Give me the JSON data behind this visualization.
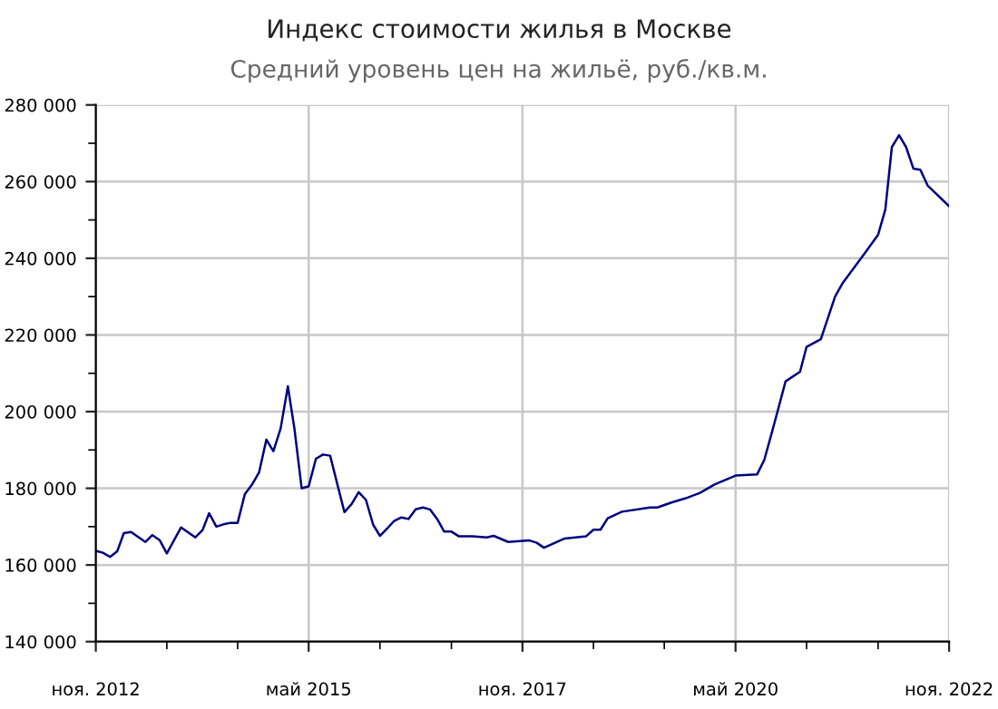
{
  "chart_data": {
    "type": "line",
    "title": "Индекс стоимости жилья в Москве",
    "subtitle": "Средний уровень цен на жильё, руб./кв.м.",
    "x": [
      "2012-11",
      "2012-12",
      "2013-01",
      "2013-02",
      "2013-03",
      "2013-04",
      "2013-06",
      "2013-07",
      "2013-08",
      "2013-09",
      "2013-11",
      "2014-01",
      "2014-02",
      "2014-03",
      "2014-04",
      "2014-05",
      "2014-06",
      "2014-07",
      "2014-08",
      "2014-09",
      "2014-10",
      "2014-11",
      "2014-12",
      "2015-01",
      "2015-02",
      "2015-03",
      "2015-04",
      "2015-05",
      "2015-06",
      "2015-07",
      "2015-08",
      "2015-09",
      "2015-10",
      "2015-11",
      "2015-12",
      "2016-01",
      "2016-02",
      "2016-03",
      "2016-04",
      "2016-05",
      "2016-06",
      "2016-07",
      "2016-08",
      "2016-09",
      "2016-10",
      "2016-11",
      "2016-12",
      "2017-01",
      "2017-02",
      "2017-04",
      "2017-06",
      "2017-07",
      "2017-09",
      "2017-12",
      "2018-01",
      "2018-02",
      "2018-05",
      "2018-08",
      "2018-09",
      "2018-10",
      "2018-11",
      "2019-01",
      "2019-05",
      "2019-06",
      "2019-08",
      "2019-10",
      "2019-12",
      "2020-02",
      "2020-05",
      "2020-08",
      "2020-09",
      "2020-10",
      "2020-11",
      "2020-12",
      "2021-02",
      "2021-03",
      "2021-05",
      "2021-07",
      "2021-08",
      "2021-11",
      "2022-01",
      "2022-02",
      "2022-03",
      "2022-04",
      "2022-05",
      "2022-06",
      "2022-07",
      "2022-08",
      "2022-11"
    ],
    "series": [
      {
        "color": "#000080",
        "values": [
          163700,
          163200,
          162100,
          163600,
          168300,
          168600,
          166000,
          167800,
          166500,
          163000,
          169800,
          167200,
          169100,
          173500,
          170000,
          170600,
          171000,
          171000,
          178500,
          181000,
          184200,
          192700,
          189700,
          195600,
          206600,
          195600,
          180000,
          180500,
          187700,
          188800,
          188500,
          181000,
          173800,
          175900,
          179000,
          177000,
          170500,
          167600,
          169500,
          171500,
          172400,
          172000,
          174500,
          175000,
          174500,
          172000,
          168700,
          168700,
          167500,
          167500,
          167200,
          167600,
          166000,
          166400,
          165800,
          164500,
          166900,
          167500,
          169200,
          169200,
          172200,
          173900,
          175000,
          175000,
          176300,
          177400,
          178800,
          181000,
          183300,
          183600,
          187400,
          194000,
          201000,
          207900,
          210400,
          216900,
          218900,
          230000,
          233400,
          241000,
          246100,
          252700,
          269000,
          272100,
          269000,
          263400,
          263100,
          259000,
          253600
        ]
      }
    ],
    "xlim": [
      "2012-11",
      "2022-11"
    ],
    "xticks": [
      {
        "value": "2012-11",
        "label": "ноя. 2012"
      },
      {
        "value": "2013-09",
        "label": null
      },
      {
        "value": "2014-07",
        "label": null
      },
      {
        "value": "2015-05",
        "label": "май 2015"
      },
      {
        "value": "2016-03",
        "label": null
      },
      {
        "value": "2017-01",
        "label": null
      },
      {
        "value": "2017-11",
        "label": "ноя. 2017"
      },
      {
        "value": "2018-09",
        "label": null
      },
      {
        "value": "2019-07",
        "label": null
      },
      {
        "value": "2020-05",
        "label": "май 2020"
      },
      {
        "value": "2021-03",
        "label": null
      },
      {
        "value": "2022-01",
        "label": null
      },
      {
        "value": "2022-11",
        "label": "ноя. 2022"
      }
    ],
    "ylim": [
      140000,
      280000
    ],
    "yticks": [
      {
        "value": 140000,
        "label": "140 000"
      },
      {
        "value": 150000,
        "label": null
      },
      {
        "value": 160000,
        "label": "160 000"
      },
      {
        "value": 170000,
        "label": null
      },
      {
        "value": 180000,
        "label": "180 000"
      },
      {
        "value": 190000,
        "label": null
      },
      {
        "value": 200000,
        "label": "200 000"
      },
      {
        "value": 210000,
        "label": null
      },
      {
        "value": 220000,
        "label": "220 000"
      },
      {
        "value": 230000,
        "label": null
      },
      {
        "value": 240000,
        "label": "240 000"
      },
      {
        "value": 250000,
        "label": null
      },
      {
        "value": 260000,
        "label": "260 000"
      },
      {
        "value": 270000,
        "label": null
      },
      {
        "value": 280000,
        "label": "280 000"
      }
    ],
    "grid": true,
    "marker": "none",
    "line_style": "solid"
  }
}
